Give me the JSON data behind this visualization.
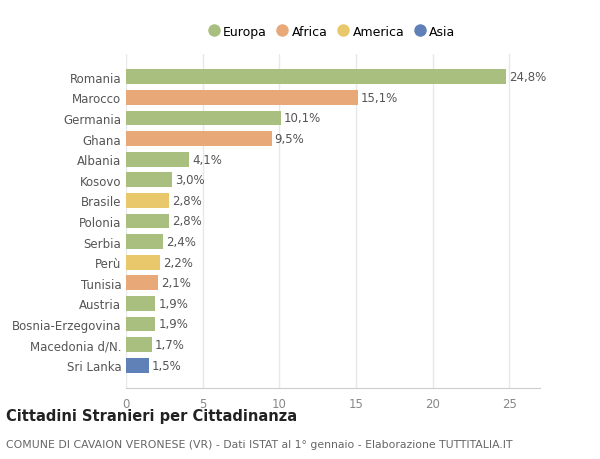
{
  "countries": [
    "Romania",
    "Marocco",
    "Germania",
    "Ghana",
    "Albania",
    "Kosovo",
    "Brasile",
    "Polonia",
    "Serbia",
    "Perù",
    "Tunisia",
    "Austria",
    "Bosnia-Erzegovina",
    "Macedonia d/N.",
    "Sri Lanka"
  ],
  "values": [
    24.8,
    15.1,
    10.1,
    9.5,
    4.1,
    3.0,
    2.8,
    2.8,
    2.4,
    2.2,
    2.1,
    1.9,
    1.9,
    1.7,
    1.5
  ],
  "labels": [
    "24,8%",
    "15,1%",
    "10,1%",
    "9,5%",
    "4,1%",
    "3,0%",
    "2,8%",
    "2,8%",
    "2,4%",
    "2,2%",
    "2,1%",
    "1,9%",
    "1,9%",
    "1,7%",
    "1,5%"
  ],
  "continents": [
    "Europa",
    "Africa",
    "Europa",
    "Africa",
    "Europa",
    "Europa",
    "America",
    "Europa",
    "Europa",
    "America",
    "Africa",
    "Europa",
    "Europa",
    "Europa",
    "Asia"
  ],
  "continent_colors": {
    "Europa": "#a8bf7f",
    "Africa": "#e8a878",
    "America": "#e8c86a",
    "Asia": "#6080b8"
  },
  "legend_order": [
    "Europa",
    "Africa",
    "America",
    "Asia"
  ],
  "title": "Cittadini Stranieri per Cittadinanza",
  "subtitle": "COMUNE DI CAVAION VERONESE (VR) - Dati ISTAT al 1° gennaio - Elaborazione TUTTITALIA.IT",
  "xlim": [
    0,
    27
  ],
  "xticks": [
    0,
    5,
    10,
    15,
    20,
    25
  ],
  "background_color": "#ffffff",
  "grid_color": "#e8e8e8",
  "bar_height": 0.72,
  "label_fontsize": 8.5,
  "title_fontsize": 10.5,
  "subtitle_fontsize": 7.8,
  "tick_fontsize": 8.5,
  "ytick_fontsize": 8.5
}
